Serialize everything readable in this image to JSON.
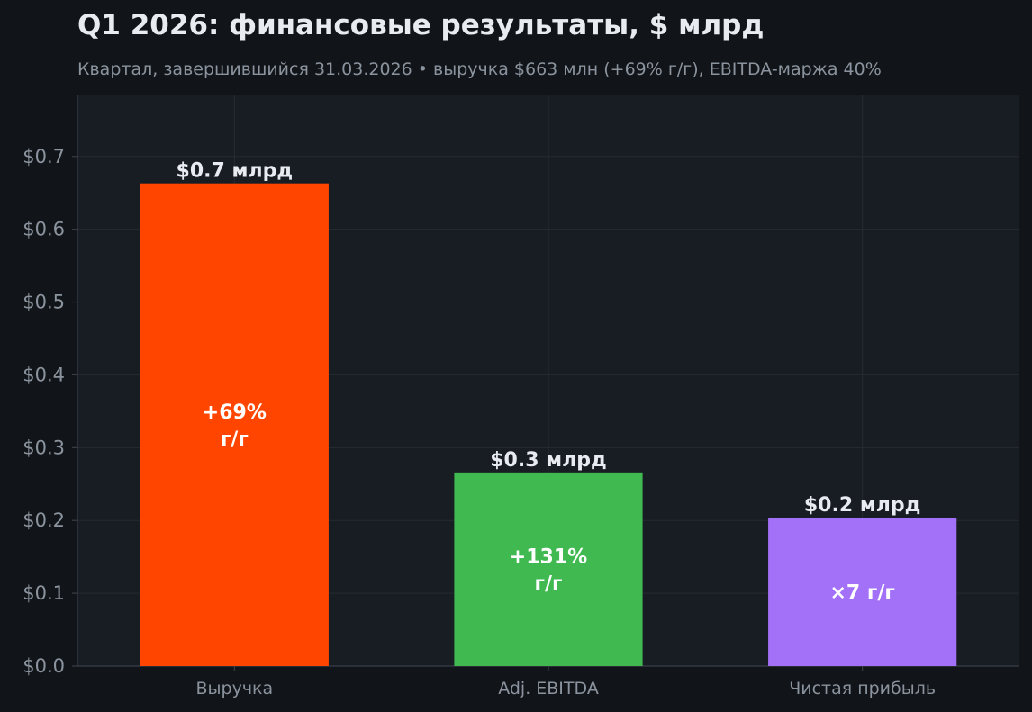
{
  "title": "Q1 2026: финансовые результаты, $ млрд",
  "subtitle": "Квартал, завершившийся 31.03.2026  •  выручка $663 млн (+69% г/г), EBITDA-маржа 40%",
  "colors": {
    "background": "#111418",
    "plot_background": "#181c23",
    "grid": "#262b33",
    "axis": "#3a3f47",
    "tick_text": "#8b949e",
    "value_text": "#e8ecf1",
    "bar_text": "#ffffff"
  },
  "chart_data": {
    "type": "bar",
    "title": "Q1 2026: финансовые результаты, $ млрд",
    "xlabel": "",
    "ylabel": "",
    "ylim": [
      0,
      0.785
    ],
    "grid": true,
    "legend": "none",
    "yticks": [
      0.0,
      0.1,
      0.2,
      0.3,
      0.4,
      0.5,
      0.6,
      0.7
    ],
    "ytick_labels": [
      "$0.0",
      "$0.1",
      "$0.2",
      "$0.3",
      "$0.4",
      "$0.5",
      "$0.6",
      "$0.7"
    ],
    "categories": [
      "Выручка",
      "Adj. EBITDA",
      "Чистая прибыль"
    ],
    "values": [
      0.663,
      0.266,
      0.204
    ],
    "value_labels": [
      "$0.7 млрд",
      "$0.3 млрд",
      "$0.2 млрд"
    ],
    "inner_labels": [
      [
        "+69%",
        "г/г"
      ],
      [
        "+131%",
        "г/г"
      ],
      [
        "×7 г/г"
      ]
    ],
    "bar_colors": [
      "#ff4500",
      "#3fb950",
      "#a371f7"
    ]
  }
}
